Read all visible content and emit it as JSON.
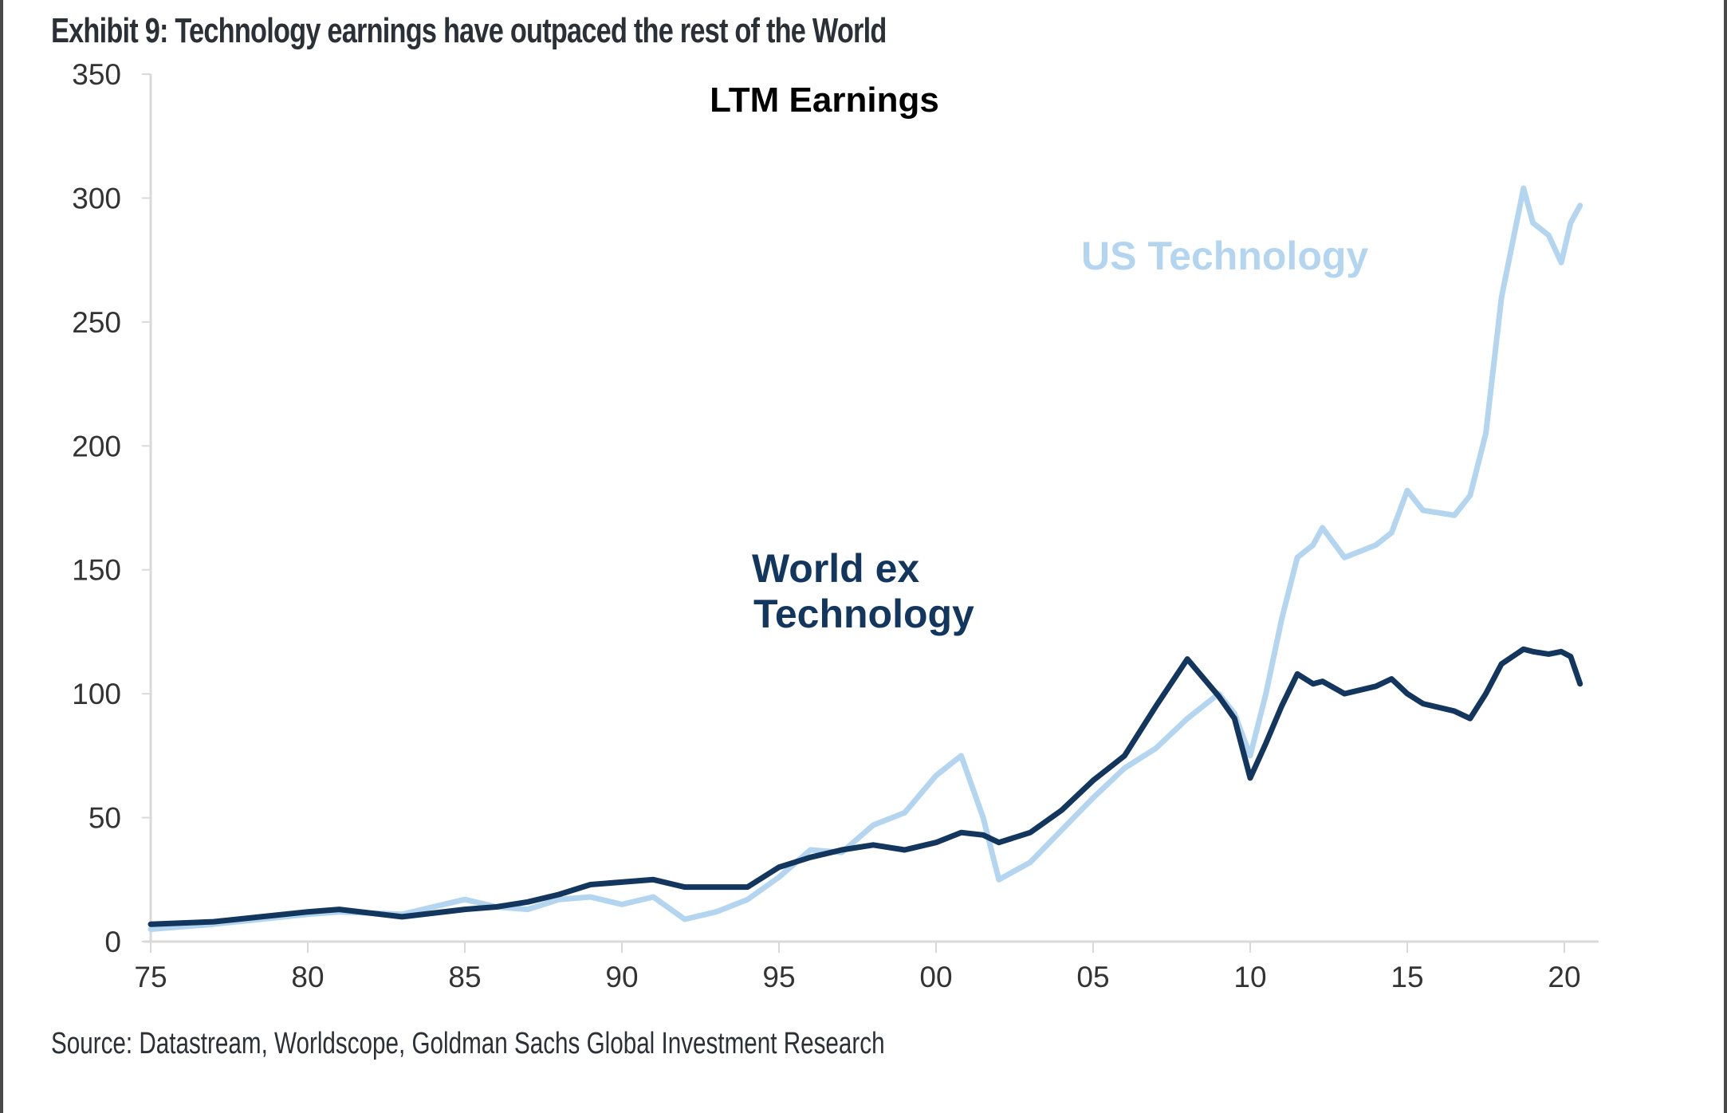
{
  "exhibit_title": "Exhibit 9: Technology earnings have outpaced the rest of the World",
  "source": "Source: Datastream, Worldscope, Goldman Sachs Global Investment Research",
  "chart_data": {
    "type": "line",
    "title": "LTM Earnings",
    "xlabel": "",
    "ylabel": "",
    "xlim": [
      1975,
      2021
    ],
    "ylim": [
      0,
      350
    ],
    "grid": false,
    "x_ticks": [
      1975,
      1980,
      1985,
      1990,
      1995,
      2000,
      2005,
      2010,
      2015,
      2020
    ],
    "x_tick_labels": [
      "75",
      "80",
      "85",
      "90",
      "95",
      "00",
      "05",
      "10",
      "15",
      "20"
    ],
    "y_ticks": [
      0,
      50,
      100,
      150,
      200,
      250,
      300,
      350
    ],
    "y_tick_labels": [
      "0",
      "50",
      "100",
      "150",
      "200",
      "250",
      "300",
      "350"
    ],
    "legend": "inline labels",
    "series": [
      {
        "name": "World ex Technology",
        "label": "World ex\nTechnology",
        "label_lines": [
          "World ex",
          "Technology"
        ],
        "color": "#13365e",
        "x": [
          1975,
          1977,
          1980,
          1981,
          1983,
          1985,
          1986,
          1987,
          1988,
          1989,
          1990,
          1991,
          1992,
          1993,
          1994,
          1995,
          1996,
          1997,
          1998,
          1999,
          2000,
          2000.8,
          2001.5,
          2002,
          2003,
          2004,
          2005,
          2006,
          2007,
          2008,
          2009,
          2009.5,
          2010,
          2010.5,
          2011,
          2011.5,
          2012,
          2012.3,
          2013,
          2014,
          2014.5,
          2015,
          2015.5,
          2016.5,
          2017,
          2017.5,
          2018,
          2018.7,
          2019,
          2019.5,
          2019.9,
          2020.2,
          2020.5
        ],
        "values": [
          7,
          8,
          12,
          13,
          10,
          13,
          14,
          16,
          19,
          23,
          24,
          25,
          22,
          22,
          22,
          30,
          34,
          37,
          39,
          37,
          40,
          44,
          43,
          40,
          44,
          53,
          65,
          75,
          95,
          114,
          99,
          90,
          66,
          80,
          95,
          108,
          104,
          105,
          100,
          103,
          106,
          100,
          96,
          93,
          90,
          100,
          112,
          118,
          117,
          116,
          117,
          115,
          104
        ]
      },
      {
        "name": "US Technology",
        "label": "US Technology",
        "label_lines": [
          "US Technology"
        ],
        "color": "#b4d5f0",
        "x": [
          1975,
          1977,
          1980,
          1981,
          1983,
          1985,
          1986,
          1987,
          1988,
          1989,
          1990,
          1991,
          1992,
          1993,
          1994,
          1995,
          1996,
          1997,
          1998,
          1999,
          2000,
          2000.8,
          2001.5,
          2002,
          2003,
          2004,
          2005,
          2006,
          2007,
          2008,
          2009,
          2009.5,
          2010,
          2010.5,
          2011,
          2011.5,
          2012,
          2012.3,
          2013,
          2014,
          2014.5,
          2015,
          2015.5,
          2016.5,
          2017,
          2017.5,
          2018,
          2018.7,
          2019,
          2019.5,
          2019.9,
          2020.2,
          2020.5
        ],
        "values": [
          5,
          7,
          11,
          12,
          11,
          17,
          14,
          13,
          17,
          18,
          15,
          18,
          9,
          12,
          17,
          26,
          37,
          36,
          47,
          52,
          67,
          75,
          50,
          25,
          32,
          45,
          58,
          70,
          78,
          90,
          100,
          92,
          75,
          100,
          130,
          155,
          160,
          167,
          155,
          160,
          165,
          182,
          174,
          172,
          180,
          205,
          260,
          304,
          290,
          285,
          274,
          290,
          297
        ]
      }
    ]
  }
}
